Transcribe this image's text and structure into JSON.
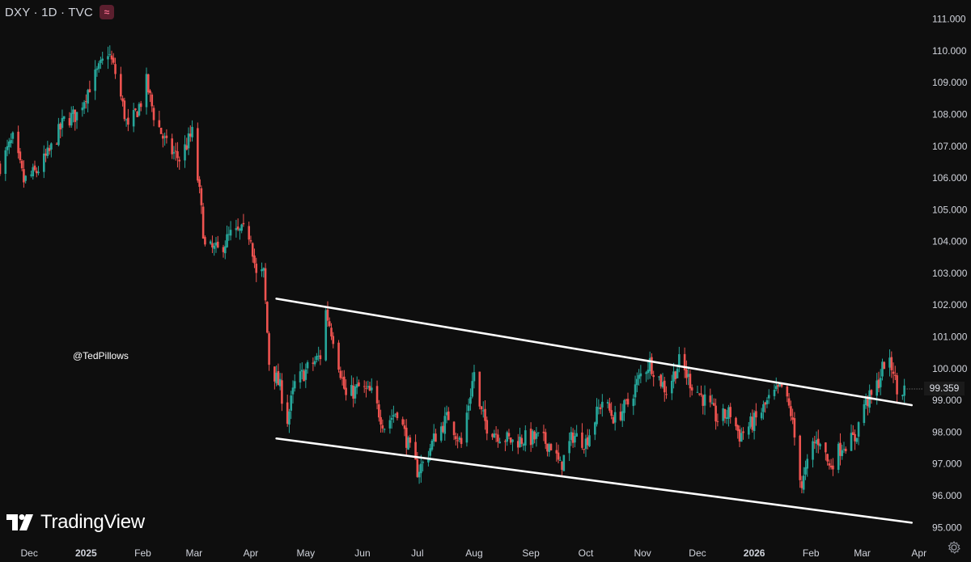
{
  "header": {
    "symbol": "DXY · 1D · TVC",
    "badge_icon": "wave-icon"
  },
  "handle": "@TedPillows",
  "logo": {
    "text": "TradingView",
    "icon": "tradingview-logo-icon"
  },
  "price_tag": "99.359",
  "colors": {
    "up": "#26a69a",
    "down": "#ef5350",
    "background": "#0e0e0e",
    "channel": "#ffffff",
    "text": "#d1d4dc"
  },
  "chart_data": {
    "type": "candlestick",
    "ylim": [
      94.6,
      111.6
    ],
    "xlim": [
      "2024-11-15",
      "2026-04-02"
    ],
    "y_ticks": [
      "111.000",
      "110.000",
      "109.000",
      "108.000",
      "107.000",
      "106.000",
      "105.000",
      "104.000",
      "103.000",
      "102.000",
      "101.000",
      "100.000",
      "99.000",
      "98.000",
      "97.000",
      "96.000",
      "95.000"
    ],
    "x_ticks": [
      {
        "label": "Dec",
        "date": "2024-12-01"
      },
      {
        "label": "2025",
        "date": "2025-01-01"
      },
      {
        "label": "Feb",
        "date": "2025-02-01"
      },
      {
        "label": "Mar",
        "date": "2025-03-01"
      },
      {
        "label": "Apr",
        "date": "2025-04-01"
      },
      {
        "label": "May",
        "date": "2025-05-01"
      },
      {
        "label": "Jun",
        "date": "2025-06-01"
      },
      {
        "label": "Jul",
        "date": "2025-07-01"
      },
      {
        "label": "Aug",
        "date": "2025-08-01"
      },
      {
        "label": "Sep",
        "date": "2025-09-01"
      },
      {
        "label": "Oct",
        "date": "2025-10-01"
      },
      {
        "label": "Nov",
        "date": "2025-11-01"
      },
      {
        "label": "Dec",
        "date": "2025-12-01"
      },
      {
        "label": "2026",
        "date": "2026-01-01"
      },
      {
        "label": "Feb",
        "date": "2026-02-01"
      },
      {
        "label": "Mar",
        "date": "2026-03-01"
      },
      {
        "label": "Apr",
        "date": "2026-04-01"
      }
    ],
    "last_price": 99.359,
    "path_points": [
      [
        "2024-11-15",
        106.4
      ],
      [
        "2024-11-22",
        107.2
      ],
      [
        "2024-11-28",
        105.9
      ],
      [
        "2024-12-05",
        106.2
      ],
      [
        "2024-12-12",
        106.8
      ],
      [
        "2024-12-20",
        107.8
      ],
      [
        "2024-12-27",
        108.0
      ],
      [
        "2025-01-03",
        108.9
      ],
      [
        "2025-01-09",
        109.5
      ],
      [
        "2025-01-13",
        110.0
      ],
      [
        "2025-01-17",
        109.3
      ],
      [
        "2025-01-24",
        107.5
      ],
      [
        "2025-01-31",
        108.4
      ],
      [
        "2025-02-03",
        109.0
      ],
      [
        "2025-02-07",
        108.0
      ],
      [
        "2025-02-14",
        107.0
      ],
      [
        "2025-02-21",
        106.6
      ],
      [
        "2025-02-28",
        107.4
      ],
      [
        "2025-03-04",
        105.5
      ],
      [
        "2025-03-07",
        103.8
      ],
      [
        "2025-03-14",
        103.7
      ],
      [
        "2025-03-21",
        104.2
      ],
      [
        "2025-03-28",
        104.3
      ],
      [
        "2025-04-01",
        104.2
      ],
      [
        "2025-04-04",
        102.9
      ],
      [
        "2025-04-08",
        103.0
      ],
      [
        "2025-04-11",
        100.2
      ],
      [
        "2025-04-17",
        99.4
      ],
      [
        "2025-04-21",
        98.4
      ],
      [
        "2025-04-25",
        99.5
      ],
      [
        "2025-05-02",
        100.0
      ],
      [
        "2025-05-09",
        100.4
      ],
      [
        "2025-05-12",
        101.8
      ],
      [
        "2025-05-16",
        101.0
      ],
      [
        "2025-05-23",
        99.1
      ],
      [
        "2025-05-30",
        99.4
      ],
      [
        "2025-06-06",
        99.2
      ],
      [
        "2025-06-13",
        98.2
      ],
      [
        "2025-06-20",
        98.7
      ],
      [
        "2025-06-27",
        97.4
      ],
      [
        "2025-07-01",
        96.8
      ],
      [
        "2025-07-04",
        97.0
      ],
      [
        "2025-07-11",
        97.9
      ],
      [
        "2025-07-18",
        98.5
      ],
      [
        "2025-07-25",
        97.6
      ],
      [
        "2025-08-01",
        99.9
      ],
      [
        "2025-08-04",
        98.7
      ],
      [
        "2025-08-08",
        98.2
      ],
      [
        "2025-08-15",
        97.9
      ],
      [
        "2025-08-22",
        97.7
      ],
      [
        "2025-08-29",
        97.8
      ],
      [
        "2025-09-05",
        97.8
      ],
      [
        "2025-09-12",
        97.6
      ],
      [
        "2025-09-17",
        96.9
      ],
      [
        "2025-09-24",
        97.9
      ],
      [
        "2025-10-01",
        97.7
      ],
      [
        "2025-10-10",
        99.0
      ],
      [
        "2025-10-17",
        98.4
      ],
      [
        "2025-10-24",
        98.9
      ],
      [
        "2025-10-31",
        99.8
      ],
      [
        "2025-11-05",
        100.2
      ],
      [
        "2025-11-14",
        99.3
      ],
      [
        "2025-11-21",
        100.2
      ],
      [
        "2025-11-28",
        99.5
      ],
      [
        "2025-12-05",
        99.0
      ],
      [
        "2025-12-12",
        98.4
      ],
      [
        "2025-12-19",
        98.6
      ],
      [
        "2025-12-24",
        97.9
      ],
      [
        "2026-01-02",
        98.4
      ],
      [
        "2026-01-09",
        99.0
      ],
      [
        "2026-01-16",
        99.4
      ],
      [
        "2026-01-21",
        98.6
      ],
      [
        "2026-01-27",
        96.3
      ],
      [
        "2026-02-02",
        97.6
      ],
      [
        "2026-02-06",
        97.8
      ],
      [
        "2026-02-11",
        96.9
      ],
      [
        "2026-02-18",
        97.6
      ],
      [
        "2026-02-25",
        97.8
      ],
      [
        "2026-03-02",
        98.9
      ],
      [
        "2026-03-06",
        99.1
      ],
      [
        "2026-03-10",
        99.6
      ],
      [
        "2026-03-13",
        100.2
      ],
      [
        "2026-03-18",
        100.0
      ],
      [
        "2026-03-20",
        99.2
      ],
      [
        "2026-03-24",
        99.36
      ]
    ],
    "channel_lines": [
      {
        "from": [
          "2025-04-15",
          102.2
        ],
        "to": [
          "2026-03-28",
          98.85
        ]
      },
      {
        "from": [
          "2025-04-15",
          97.8
        ],
        "to": [
          "2026-03-28",
          95.15
        ]
      }
    ]
  }
}
